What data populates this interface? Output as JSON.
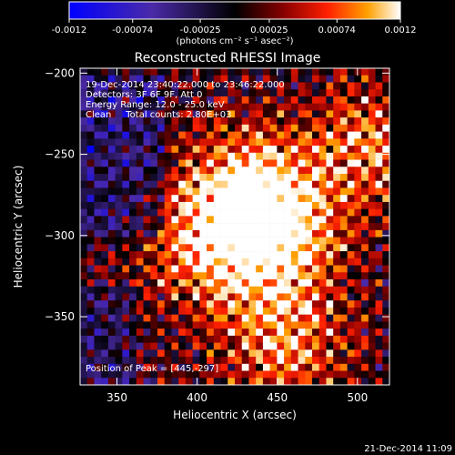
{
  "chart_data": {
    "type": "heatmap",
    "title": "Reconstructed RHESSI Image",
    "xlabel": "Heliocentric X (arcsec)",
    "ylabel": "Heliocentric Y (arcsec)",
    "xlim": [
      327,
      520
    ],
    "ylim": [
      -392,
      -197
    ],
    "x_ticks": [
      350,
      400,
      450,
      500
    ],
    "y_ticks": [
      -200,
      -250,
      -300,
      -350
    ],
    "colorbar": {
      "ticks": [
        "-0.0012",
        "-0.00074",
        "-0.00025",
        "0.00025",
        "0.00074",
        "0.0012"
      ],
      "range": [
        -0.0012,
        0.0012
      ],
      "units": "(photons cm⁻² s⁻¹ asec⁻²)"
    },
    "annotations": [
      "19-Dec-2014 23:40:22.000 to 23:46:22.000",
      "Detectors: 3F 6F 9F, Att 0",
      "Energy Range: 12.0 - 25.0 keV",
      "Clean     Total counts: 2.80E+03"
    ],
    "peak_label": "Position of Peak = [445,-297]",
    "peak": [
      445,
      -297
    ],
    "sources": [
      {
        "x": 448,
        "y": -297,
        "amplitude": 0.0012
      },
      {
        "x": 430,
        "y": -270,
        "amplitude": 0.0009
      },
      {
        "x": 402,
        "y": -308,
        "amplitude": 0.00075
      },
      {
        "x": 455,
        "y": -365,
        "amplitude": 0.0009
      },
      {
        "x": 510,
        "y": -245,
        "amplitude": 0.00085
      }
    ]
  },
  "timestamp": "21-Dec-2014 11:09"
}
